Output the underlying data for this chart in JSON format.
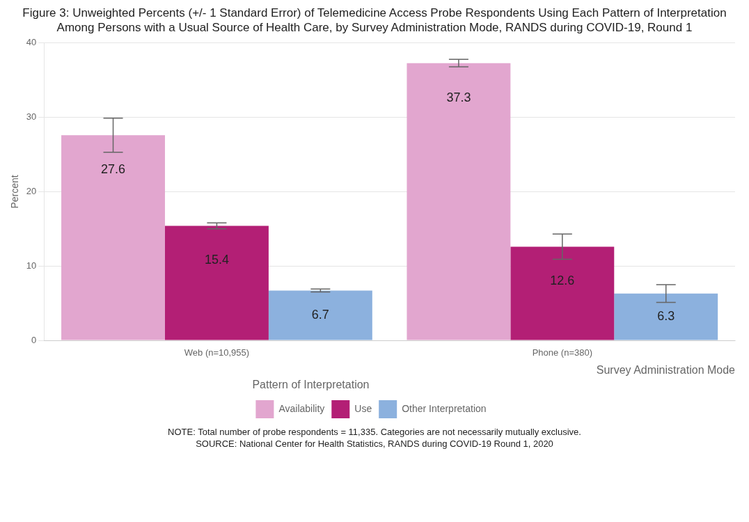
{
  "chart_data": {
    "type": "bar",
    "title": "Figure 3: Unweighted Percents (+/- 1 Standard Error) of Telemedicine Access Probe Respondents Using Each Pattern of Interpretation Among Persons with a Usual Source of Health Care, by Survey Administration Mode, RANDS during COVID-19, Round 1",
    "xlabel": "Survey Administration Mode",
    "ylabel": "Percent",
    "legend_title": "Pattern of Interpretation",
    "categories": [
      "Web (n=10,955)",
      "Phone (n=380)"
    ],
    "series": [
      {
        "name": "Availability",
        "color": "#e2a6cf",
        "values": [
          27.6,
          37.3
        ],
        "errors": [
          2.3,
          0.5
        ]
      },
      {
        "name": "Use",
        "color": "#b31f75",
        "values": [
          15.4,
          12.6
        ],
        "errors": [
          0.4,
          1.7
        ]
      },
      {
        "name": "Other Interpretation",
        "color": "#8cb1de",
        "values": [
          6.7,
          6.3
        ],
        "errors": [
          0.2,
          1.2
        ]
      }
    ],
    "ylim": [
      0,
      40
    ],
    "yticks": [
      0,
      10,
      20,
      30,
      40
    ],
    "grid": "y",
    "legend": "bottom",
    "data_labels": true,
    "annotations": [
      "NOTE: Total number of probe respondents = 11,335. Categories are not necessarily mutually exclusive.",
      "SOURCE: National Center for Health Statistics, RANDS during COVID-19 Round 1, 2020"
    ]
  }
}
